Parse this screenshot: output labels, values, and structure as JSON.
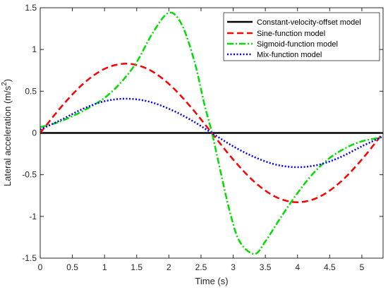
{
  "chart_data": {
    "type": "line",
    "xlabel": "Time (s)",
    "ylabel": "Lateral acceleration (m/s",
    "ylabel_sup": "2",
    "ylabel_close": ")",
    "xlim": [
      0,
      5.33
    ],
    "ylim": [
      -1.5,
      1.5
    ],
    "xticks": [
      0,
      0.5,
      1,
      1.5,
      2,
      2.5,
      3,
      3.5,
      4,
      4.5,
      5
    ],
    "xtick_labels": [
      "0",
      "0.5",
      "1",
      "1.5",
      "2",
      "2.5",
      "3",
      "3.5",
      "4",
      "4.5",
      "5"
    ],
    "yticks": [
      -1.5,
      -1,
      -0.5,
      0,
      0.5,
      1,
      1.5
    ],
    "ytick_labels": [
      "-1.5",
      "-1",
      "-0.5",
      "0",
      "0.5",
      "1",
      "1.5"
    ],
    "grid": false,
    "legend_position": "top-right",
    "series": [
      {
        "name": "Constant-velocity-offset model",
        "color": "#000000",
        "style": "solid",
        "x": [
          0,
          5.33
        ],
        "y": [
          0,
          0
        ]
      },
      {
        "name": "Sine-function model",
        "color": "#ff0000",
        "style": "dashed",
        "x": [
          0,
          0.333,
          0.667,
          1.0,
          1.333,
          1.667,
          2.0,
          2.333,
          2.667,
          3.0,
          3.333,
          3.667,
          4.0,
          4.333,
          4.667,
          5.0,
          5.33
        ],
        "y": [
          0,
          0.318,
          0.588,
          0.768,
          0.83,
          0.768,
          0.588,
          0.318,
          0,
          -0.318,
          -0.588,
          -0.768,
          -0.83,
          -0.768,
          -0.588,
          -0.318,
          0
        ]
      },
      {
        "name": "Sigmoid-function model",
        "color": "#00dd00",
        "style": "dashdot",
        "x": [
          0,
          0.25,
          0.5,
          0.75,
          1.0,
          1.25,
          1.5,
          1.75,
          2.0,
          2.2,
          2.4,
          2.55,
          2.67,
          2.8,
          2.95,
          3.1,
          3.33,
          3.5,
          3.75,
          4.0,
          4.25,
          4.5,
          4.75,
          5.0,
          5.33
        ],
        "y": [
          0.07,
          0.12,
          0.2,
          0.3,
          0.42,
          0.6,
          0.85,
          1.2,
          1.44,
          1.3,
          0.85,
          0.35,
          0,
          -0.45,
          -0.95,
          -1.3,
          -1.45,
          -1.3,
          -1.0,
          -0.72,
          -0.48,
          -0.3,
          -0.18,
          -0.1,
          -0.05
        ]
      },
      {
        "name": "Mix-function model",
        "color": "#0000ff",
        "style": "dotted",
        "x": [
          0,
          0.333,
          0.667,
          1.0,
          1.333,
          1.667,
          2.0,
          2.333,
          2.667,
          3.0,
          3.333,
          3.667,
          4.0,
          4.333,
          4.667,
          5.0,
          5.33
        ],
        "y": [
          0.04,
          0.16,
          0.29,
          0.38,
          0.41,
          0.38,
          0.29,
          0.16,
          0,
          -0.16,
          -0.29,
          -0.38,
          -0.41,
          -0.38,
          -0.29,
          -0.16,
          -0.04
        ]
      }
    ]
  }
}
